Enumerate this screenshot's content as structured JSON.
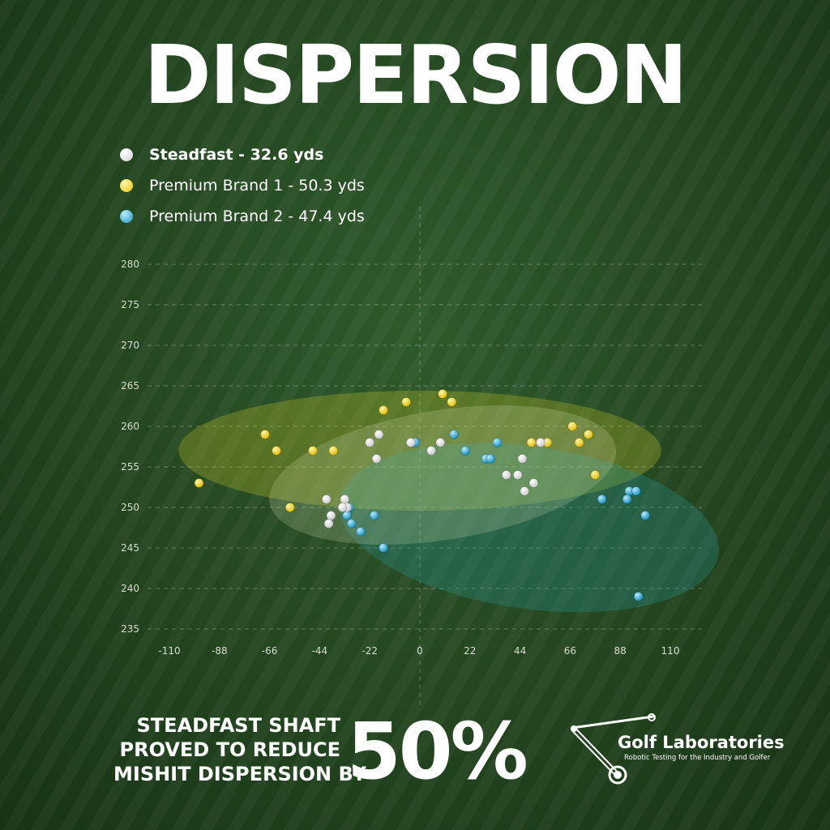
{
  "title": "DISPERSION",
  "colors": {
    "steadfast": "#ffffff",
    "brand1": "#f2cf1c",
    "brand2": "#29a8d4"
  },
  "legend": [
    {
      "label": "Steadfast - 32.6 yds",
      "color": "#ffffff"
    },
    {
      "label": "Premium Brand 1 - 50.3 yds",
      "color": "#f2cf1c"
    },
    {
      "label": "Premium Brand 2 - 47.4 yds",
      "color": "#29a8d4"
    }
  ],
  "chart_data": {
    "type": "scatter",
    "xlim": [
      -110,
      110
    ],
    "ylim": [
      235,
      280
    ],
    "x_ticks": [
      "-110",
      "-88",
      "-66",
      "-44",
      "-22",
      "0",
      "22",
      "44",
      "66",
      "88",
      "110"
    ],
    "y_ticks": [
      "280",
      "275",
      "270",
      "265",
      "260",
      "255",
      "250",
      "245",
      "240",
      "235"
    ],
    "grid": true,
    "series": [
      {
        "name": "Steadfast - 32.6 yds",
        "color": "#ffffff",
        "ellipse": {
          "cx": 10,
          "cy": 254,
          "rx": 77,
          "ry": 8,
          "angle": -9
        },
        "points": [
          [
            -41,
            251
          ],
          [
            -39,
            249
          ],
          [
            -40,
            248
          ],
          [
            -33,
            251
          ],
          [
            -32,
            250
          ],
          [
            -22,
            258
          ],
          [
            -18,
            259
          ],
          [
            -19,
            256
          ],
          [
            -4,
            258
          ],
          [
            5,
            257
          ],
          [
            9,
            258
          ],
          [
            38,
            254
          ],
          [
            43,
            254
          ],
          [
            45,
            256
          ],
          [
            46,
            252
          ],
          [
            50,
            253
          ],
          [
            53,
            258
          ],
          [
            -34,
            250
          ]
        ]
      },
      {
        "name": "Premium Brand 1 - 50.3 yds",
        "color": "#f2cf1c",
        "ellipse": {
          "cx": 0,
          "cy": 257,
          "rx": 106,
          "ry": 7.4,
          "angle": 0
        },
        "points": [
          [
            -97,
            253
          ],
          [
            -68,
            259
          ],
          [
            -63,
            257
          ],
          [
            -57,
            250
          ],
          [
            -47,
            257
          ],
          [
            -38,
            257
          ],
          [
            -16,
            262
          ],
          [
            -6,
            263
          ],
          [
            10,
            264
          ],
          [
            14,
            263
          ],
          [
            49,
            258
          ],
          [
            56,
            258
          ],
          [
            67,
            260
          ],
          [
            70,
            258
          ],
          [
            74,
            259
          ],
          [
            77,
            254
          ]
        ]
      },
      {
        "name": "Premium Brand 2 - 47.4 yds",
        "color": "#29a8d4",
        "ellipse": {
          "cx": 48,
          "cy": 247.5,
          "rx": 84,
          "ry": 10,
          "angle": 8
        },
        "points": [
          [
            -31,
            250
          ],
          [
            -32,
            249
          ],
          [
            -30,
            248
          ],
          [
            -26,
            247
          ],
          [
            -20,
            249
          ],
          [
            -16,
            245
          ],
          [
            -2,
            258
          ],
          [
            15,
            259
          ],
          [
            20,
            257
          ],
          [
            29,
            256
          ],
          [
            31,
            256
          ],
          [
            34,
            258
          ],
          [
            80,
            251
          ],
          [
            92,
            252
          ],
          [
            91,
            251
          ],
          [
            95,
            252
          ],
          [
            99,
            249
          ],
          [
            96,
            239
          ]
        ]
      }
    ]
  },
  "footer": {
    "lines": [
      "STEADFAST SHAFT",
      "PROVED TO REDUCE",
      "MISHIT DISPERSION BY"
    ],
    "big": "50%"
  },
  "brand": {
    "name": "Golf Laboratories",
    "tagline": "Robotic Testing for the Industry and Golfer"
  }
}
